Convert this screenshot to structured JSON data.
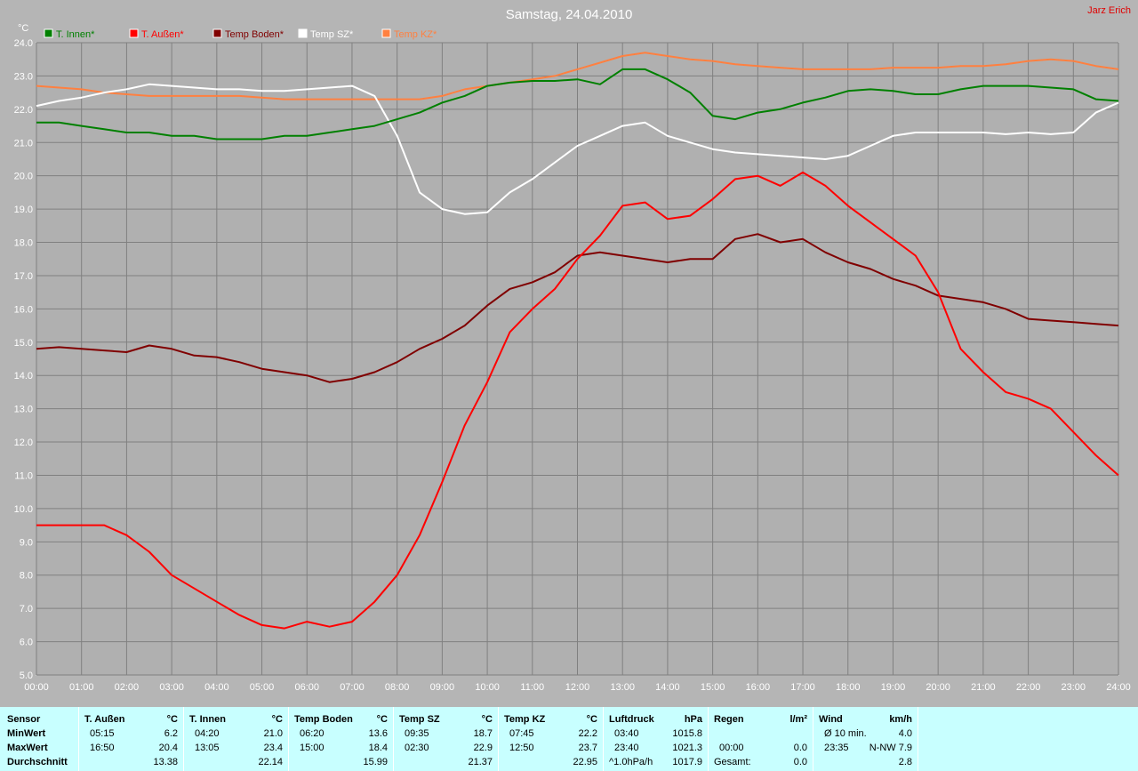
{
  "header": {
    "title": "Samstag, 24.04.2010",
    "author": "Jarz Erich"
  },
  "chart_data": {
    "type": "line",
    "title": "Samstag, 24.04.2010",
    "ylabel": "°C",
    "xlabel": "",
    "ylim": [
      5.0,
      24.0
    ],
    "xlim_hours": [
      0,
      24
    ],
    "yticks": [
      "5.0",
      "6.0",
      "7.0",
      "8.0",
      "9.0",
      "10.0",
      "11.0",
      "12.0",
      "13.0",
      "14.0",
      "15.0",
      "16.0",
      "17.0",
      "18.0",
      "19.0",
      "20.0",
      "21.0",
      "22.0",
      "23.0",
      "24.0"
    ],
    "xticks": [
      "00:00",
      "01:00",
      "02:00",
      "03:00",
      "04:00",
      "05:00",
      "06:00",
      "07:00",
      "08:00",
      "09:00",
      "10:00",
      "11:00",
      "12:00",
      "13:00",
      "14:00",
      "15:00",
      "16:00",
      "17:00",
      "18:00",
      "19:00",
      "20:00",
      "21:00",
      "22:00",
      "23:00",
      "24:00"
    ],
    "grid": true,
    "legend_position": "top-left",
    "series": [
      {
        "name": "T. Innen*",
        "color": "#008000",
        "x": [
          0,
          0.5,
          1,
          1.5,
          2,
          2.5,
          3,
          3.5,
          4,
          4.5,
          5,
          5.5,
          6,
          6.5,
          7,
          7.5,
          8,
          8.5,
          9,
          9.5,
          10,
          10.5,
          11,
          11.5,
          12,
          12.5,
          13,
          13.5,
          14,
          14.5,
          15,
          15.5,
          16,
          16.5,
          17,
          17.5,
          18,
          18.5,
          19,
          19.5,
          20,
          20.5,
          21,
          21.5,
          22,
          22.5,
          23,
          23.5,
          24
        ],
        "values": [
          21.6,
          21.6,
          21.5,
          21.4,
          21.3,
          21.3,
          21.2,
          21.2,
          21.1,
          21.1,
          21.1,
          21.2,
          21.2,
          21.3,
          21.4,
          21.5,
          21.7,
          21.9,
          22.2,
          22.4,
          22.7,
          22.8,
          22.85,
          22.85,
          22.9,
          22.75,
          23.2,
          23.2,
          22.9,
          22.5,
          21.8,
          21.7,
          21.9,
          22.0,
          22.2,
          22.35,
          22.55,
          22.6,
          22.55,
          22.45,
          22.45,
          22.6,
          22.7,
          22.7,
          22.7,
          22.65,
          22.6,
          22.3,
          22.25
        ]
      },
      {
        "name": "T. Außen*",
        "color": "#ff0000",
        "x": [
          0,
          0.5,
          1,
          1.5,
          2,
          2.5,
          3,
          3.5,
          4,
          4.5,
          5,
          5.5,
          6,
          6.5,
          7,
          7.5,
          8,
          8.5,
          9,
          9.5,
          10,
          10.5,
          11,
          11.5,
          12,
          12.5,
          13,
          13.5,
          14,
          14.5,
          15,
          15.5,
          16,
          16.5,
          17,
          17.5,
          18,
          18.5,
          19,
          19.5,
          20,
          20.5,
          21,
          21.5,
          22,
          22.5,
          23,
          23.5,
          24
        ],
        "values": [
          9.5,
          9.5,
          9.5,
          9.5,
          9.2,
          8.7,
          8.0,
          7.6,
          7.2,
          6.8,
          6.5,
          6.4,
          6.6,
          6.45,
          6.6,
          7.2,
          8.0,
          9.2,
          10.8,
          12.5,
          13.8,
          15.3,
          16.0,
          16.6,
          17.5,
          18.2,
          19.1,
          19.2,
          18.7,
          18.8,
          19.3,
          19.9,
          20.0,
          19.7,
          20.1,
          19.7,
          19.1,
          18.6,
          18.1,
          17.6,
          16.5,
          14.8,
          14.1,
          13.5,
          13.3,
          13.0,
          12.3,
          11.6,
          11.0
        ]
      },
      {
        "name": "Temp Boden*",
        "color": "#800000",
        "x": [
          0,
          0.5,
          1,
          1.5,
          2,
          2.5,
          3,
          3.5,
          4,
          4.5,
          5,
          5.5,
          6,
          6.5,
          7,
          7.5,
          8,
          8.5,
          9,
          9.5,
          10,
          10.5,
          11,
          11.5,
          12,
          12.5,
          13,
          13.5,
          14,
          14.5,
          15,
          15.5,
          16,
          16.5,
          17,
          17.5,
          18,
          18.5,
          19,
          19.5,
          20,
          20.5,
          21,
          21.5,
          22,
          22.5,
          23,
          23.5,
          24
        ],
        "values": [
          14.8,
          14.85,
          14.8,
          14.75,
          14.7,
          14.9,
          14.8,
          14.6,
          14.55,
          14.4,
          14.2,
          14.1,
          14.0,
          13.8,
          13.9,
          14.1,
          14.4,
          14.8,
          15.1,
          15.5,
          16.1,
          16.6,
          16.8,
          17.1,
          17.6,
          17.7,
          17.6,
          17.5,
          17.4,
          17.5,
          17.5,
          18.1,
          18.25,
          18.0,
          18.1,
          17.7,
          17.4,
          17.2,
          16.9,
          16.7,
          16.4,
          16.3,
          16.2,
          16.0,
          15.7,
          15.65,
          15.6,
          15.55,
          15.5
        ]
      },
      {
        "name": "Temp SZ*",
        "color": "#ffffff",
        "x": [
          0,
          0.5,
          1,
          1.5,
          2,
          2.5,
          3,
          3.5,
          4,
          4.5,
          5,
          5.5,
          6,
          6.5,
          7,
          7.5,
          8,
          8.5,
          9,
          9.5,
          10,
          10.5,
          11,
          11.5,
          12,
          12.5,
          13,
          13.5,
          14,
          14.5,
          15,
          15.5,
          16,
          16.5,
          17,
          17.5,
          18,
          18.5,
          19,
          19.5,
          20,
          20.5,
          21,
          21.5,
          22,
          22.5,
          23,
          23.5,
          24
        ],
        "values": [
          22.1,
          22.25,
          22.35,
          22.5,
          22.6,
          22.75,
          22.7,
          22.65,
          22.6,
          22.6,
          22.55,
          22.55,
          22.6,
          22.65,
          22.7,
          22.4,
          21.2,
          19.5,
          19.0,
          18.85,
          18.9,
          19.5,
          19.9,
          20.4,
          20.9,
          21.2,
          21.5,
          21.6,
          21.2,
          21.0,
          20.8,
          20.7,
          20.65,
          20.6,
          20.55,
          20.5,
          20.6,
          20.9,
          21.2,
          21.3,
          21.3,
          21.3,
          21.3,
          21.25,
          21.3,
          21.25,
          21.3,
          21.9,
          22.2
        ]
      },
      {
        "name": "Temp KZ*",
        "color": "#ff8040",
        "x": [
          0,
          0.5,
          1,
          1.5,
          2,
          2.5,
          3,
          3.5,
          4,
          4.5,
          5,
          5.5,
          6,
          6.5,
          7,
          7.5,
          8,
          8.5,
          9,
          9.5,
          10,
          10.5,
          11,
          11.5,
          12,
          12.5,
          13,
          13.5,
          14,
          14.5,
          15,
          15.5,
          16,
          16.5,
          17,
          17.5,
          18,
          18.5,
          19,
          19.5,
          20,
          20.5,
          21,
          21.5,
          22,
          22.5,
          23,
          23.5,
          24
        ],
        "values": [
          22.7,
          22.65,
          22.6,
          22.5,
          22.45,
          22.4,
          22.4,
          22.4,
          22.4,
          22.4,
          22.35,
          22.3,
          22.3,
          22.3,
          22.3,
          22.3,
          22.3,
          22.3,
          22.4,
          22.6,
          22.7,
          22.8,
          22.9,
          23.0,
          23.2,
          23.4,
          23.6,
          23.7,
          23.6,
          23.5,
          23.45,
          23.35,
          23.3,
          23.25,
          23.2,
          23.2,
          23.2,
          23.2,
          23.25,
          23.25,
          23.25,
          23.3,
          23.3,
          23.35,
          23.45,
          23.5,
          23.45,
          23.3,
          23.2
        ]
      }
    ]
  },
  "table": {
    "row_labels": {
      "sensor": "Sensor",
      "min": "MinWert",
      "max": "MaxWert",
      "avg": "Durchschnitt"
    },
    "columns": [
      {
        "name": "T. Außen",
        "unit": "°C",
        "min_time": "05:15",
        "min_val": "6.2",
        "max_time": "16:50",
        "max_val": "20.4",
        "avg_prefix": "",
        "avg": "13.38"
      },
      {
        "name": "T. Innen",
        "unit": "°C",
        "min_time": "04:20",
        "min_val": "21.0",
        "max_time": "13:05",
        "max_val": "23.4",
        "avg_prefix": "",
        "avg": "22.14"
      },
      {
        "name": "Temp Boden",
        "unit": "°C",
        "min_time": "06:20",
        "min_val": "13.6",
        "max_time": "15:00",
        "max_val": "18.4",
        "avg_prefix": "",
        "avg": "15.99"
      },
      {
        "name": "Temp SZ",
        "unit": "°C",
        "min_time": "09:35",
        "min_val": "18.7",
        "max_time": "02:30",
        "max_val": "22.9",
        "avg_prefix": "",
        "avg": "21.37"
      },
      {
        "name": "Temp KZ",
        "unit": "°C",
        "min_time": "07:45",
        "min_val": "22.2",
        "max_time": "12:50",
        "max_val": "23.7",
        "avg_prefix": "",
        "avg": "22.95"
      },
      {
        "name": "Luftdruck",
        "unit": "hPa",
        "min_time": "03:40",
        "min_val": "1015.8",
        "max_time": "23:40",
        "max_val": "1021.3",
        "avg_prefix": "^1.0hPa/h",
        "avg": "1017.9"
      },
      {
        "name": "Regen",
        "unit": "l/m²",
        "min_time": "",
        "min_val": "",
        "max_time": "00:00",
        "max_val": "0.0",
        "avg_prefix": "Gesamt:",
        "avg": "0.0"
      },
      {
        "name": "Wind",
        "unit": "km/h",
        "min_time": "Ø 10 min.",
        "min_val": "4.0",
        "max_time": "23:35",
        "max_val": "N-NW 7.9",
        "avg_prefix": "",
        "avg": "2.8"
      }
    ]
  }
}
